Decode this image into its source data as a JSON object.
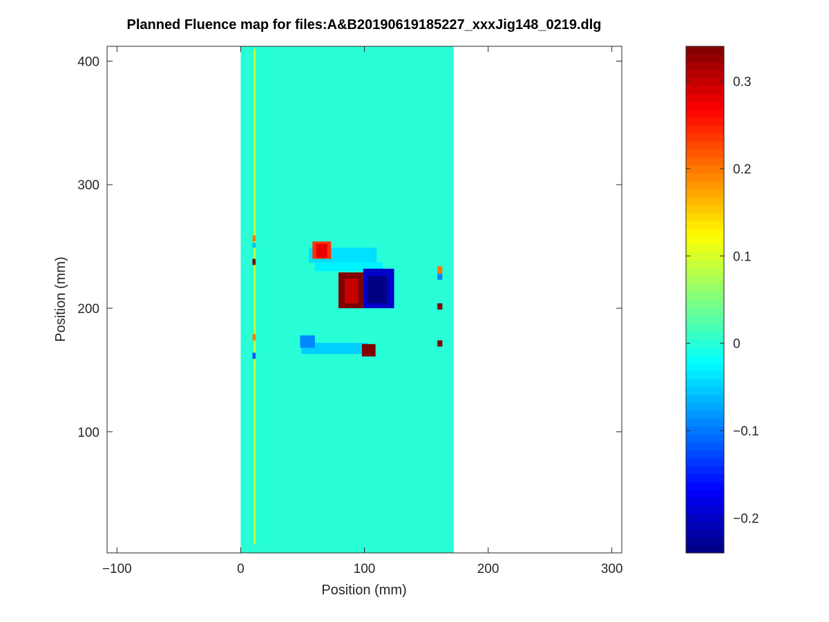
{
  "chart_data": {
    "type": "heatmap",
    "title": "Planned Fluence map for files:A&B20190619185227_xxxJig148_0219.dlg",
    "xlabel": "Position (mm)",
    "ylabel": "Position (mm)",
    "xlim": [
      -108,
      308
    ],
    "ylim": [
      2,
      412
    ],
    "xticks": [
      -100,
      0,
      100,
      200,
      300
    ],
    "xtick_labels": [
      "−100",
      "0",
      "100",
      "200",
      "300"
    ],
    "yticks": [
      100,
      200,
      300,
      400
    ],
    "ytick_labels": [
      "100",
      "200",
      "300",
      "400"
    ],
    "colorbar": {
      "colormap": "jet",
      "clim": [
        -0.24,
        0.34
      ],
      "ticks": [
        -0.2,
        -0.1,
        0,
        0.1,
        0.2,
        0.3
      ],
      "tick_labels": [
        "−0.2",
        "−0.1",
        "0",
        "0.1",
        "0.2",
        "0.3"
      ]
    },
    "field": {
      "x_range": [
        0,
        172
      ],
      "y_range": [
        2,
        412
      ],
      "value": 0
    },
    "features": [
      {
        "name": "left-line-upper",
        "x": [
          10.5,
          12
        ],
        "y": [
          9,
          410
        ],
        "value": 0.09
      },
      {
        "name": "left-mark-1",
        "x": [
          9.5,
          12
        ],
        "y": [
          254,
          259
        ],
        "value": 0.2
      },
      {
        "name": "left-mark-2",
        "x": [
          9.5,
          12
        ],
        "y": [
          249,
          253
        ],
        "value": -0.06
      },
      {
        "name": "left-mark-3",
        "x": [
          9.5,
          12
        ],
        "y": [
          235,
          240
        ],
        "value": 0.34
      },
      {
        "name": "left-mark-4",
        "x": [
          9.5,
          12
        ],
        "y": [
          174,
          179
        ],
        "value": 0.2
      },
      {
        "name": "left-mark-5",
        "x": [
          9.5,
          12
        ],
        "y": [
          159,
          164
        ],
        "value": -0.12
      },
      {
        "name": "upper-band",
        "x": [
          55,
          110
        ],
        "y": [
          237,
          249
        ],
        "value": -0.04
      },
      {
        "name": "upper-band-tail",
        "x": [
          60,
          115
        ],
        "y": [
          230,
          237
        ],
        "value": -0.03
      },
      {
        "name": "upper-hot-spot",
        "x": [
          58,
          73
        ],
        "y": [
          240,
          254
        ],
        "value": 0.24
      },
      {
        "name": "upper-hot-core",
        "x": [
          61,
          70
        ],
        "y": [
          241,
          252
        ],
        "value": 0.28
      },
      {
        "name": "center-hot-spot",
        "x": [
          79,
          99
        ],
        "y": [
          200,
          229
        ],
        "value": 0.34
      },
      {
        "name": "center-hot-core",
        "x": [
          84,
          95
        ],
        "y": [
          204,
          224
        ],
        "value": 0.3
      },
      {
        "name": "center-cold-spot",
        "x": [
          99,
          124
        ],
        "y": [
          200,
          232
        ],
        "value": -0.2
      },
      {
        "name": "center-cold-core",
        "x": [
          103,
          118
        ],
        "y": [
          204,
          226
        ],
        "value": -0.24
      },
      {
        "name": "lower-band",
        "x": [
          49,
          103
        ],
        "y": [
          163,
          172
        ],
        "value": -0.05
      },
      {
        "name": "lower-cold-blob",
        "x": [
          48,
          60
        ],
        "y": [
          168,
          178
        ],
        "value": -0.09
      },
      {
        "name": "lower-hot-spot",
        "x": [
          98,
          109
        ],
        "y": [
          161,
          171
        ],
        "value": 0.34
      },
      {
        "name": "right-mark-1",
        "x": [
          159,
          163
        ],
        "y": [
          228,
          234
        ],
        "value": 0.2
      },
      {
        "name": "right-mark-2",
        "x": [
          159,
          163
        ],
        "y": [
          223,
          228
        ],
        "value": -0.09
      },
      {
        "name": "right-mark-3",
        "x": [
          159,
          163
        ],
        "y": [
          199,
          204
        ],
        "value": 0.34
      },
      {
        "name": "right-mark-4",
        "x": [
          159,
          163
        ],
        "y": [
          169,
          174
        ],
        "value": 0.34
      }
    ]
  }
}
